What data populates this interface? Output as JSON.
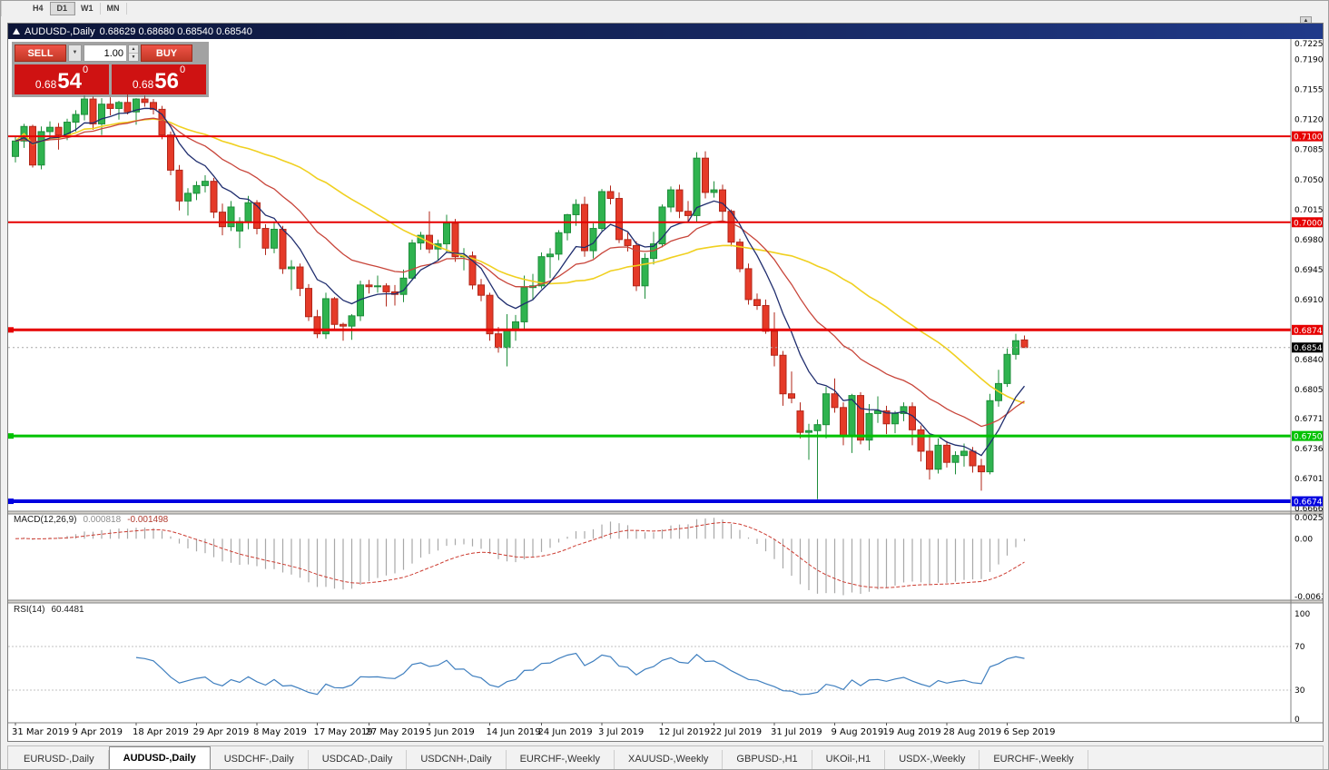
{
  "window": {
    "title_bar": {
      "symbol": "AUDUSD-,Daily",
      "ohlc": "0.68629 0.68680 0.68540 0.68540"
    }
  },
  "toolbar": {
    "timeframes": [
      "H4",
      "D1",
      "W1",
      "MN"
    ],
    "active": "D1"
  },
  "icons": {
    "spinner_up": "▲",
    "spinner_down": "▼",
    "dropdown": "▼",
    "scroll_up": "▲"
  },
  "trade_panel": {
    "sell_label": "SELL",
    "buy_label": "BUY",
    "volume": "1.00",
    "sell_price": {
      "prefix": "0.68",
      "big": "54",
      "sup": "0"
    },
    "buy_price": {
      "prefix": "0.68",
      "big": "56",
      "sup": "0"
    }
  },
  "price_axis": {
    "labels": [
      "0.72250",
      "0.71900",
      "0.71550",
      "0.71200",
      "0.70850",
      "0.70500",
      "0.70150",
      "0.69800",
      "0.69450",
      "0.69100",
      "0.68750",
      "0.68400",
      "0.68050",
      "0.67710",
      "0.67360",
      "0.67010",
      "0.66660"
    ]
  },
  "hlines": [
    {
      "price": 0.71005,
      "label": "0.71005",
      "color": "#e60000",
      "width": 2,
      "anchor": false
    },
    {
      "price": 0.70002,
      "label": "0.70002",
      "color": "#e60000",
      "width": 2,
      "anchor": false
    },
    {
      "price": 0.68746,
      "label": "0.68746",
      "color": "#e60000",
      "width": 3,
      "anchor": true
    },
    {
      "price": 0.67508,
      "label": "0.67508",
      "color": "#00c200",
      "width": 3,
      "anchor": true
    },
    {
      "price": 0.66746,
      "label": "0.66746",
      "color": "#0000e0",
      "width": 4,
      "anchor": true
    }
  ],
  "current_price": {
    "value": 0.6854,
    "label": "0.68540"
  },
  "macd": {
    "name": "MACD(12,26,9)",
    "value1": "0.000818",
    "value2": "-0.001498",
    "fast": 12,
    "slow": 26,
    "signal": 9,
    "axis_labels": [
      "0.0025574",
      "0.00",
      "-0.0063326"
    ],
    "scale_max": 0.0025574,
    "scale_min": -0.0063326
  },
  "rsi": {
    "name": "RSI(14)",
    "value": "60.4481",
    "period": 14,
    "levels": [
      70,
      30
    ],
    "axis_labels": [
      "100",
      "70",
      "30",
      "0"
    ]
  },
  "tabs": {
    "items": [
      "EURUSD-,Daily",
      "AUDUSD-,Daily",
      "USDCHF-,Daily",
      "USDCAD-,Daily",
      "USDCNH-,Daily",
      "EURCHF-,Weekly",
      "XAUUSD-,Weekly",
      "GBPUSD-,H1",
      "UKOil-,H1",
      "USDX-,Weekly",
      "EURCHF-,Weekly"
    ],
    "active_index": 1
  },
  "colors": {
    "bull": "#2fb34f",
    "bear": "#e53a28",
    "bull_stroke": "#1d8d3a",
    "bear_stroke": "#b1271a",
    "axis_text": "#000000",
    "tag_text": "#ffffff",
    "macd_hist": "#a8a8a8",
    "macd_signal": "#cc3b30",
    "rsi_line": "#3f7fbf",
    "level_line": "#c0c0c0",
    "current_line": "#a8a8a8",
    "current_tag": "#000000",
    "panel_sep": "#d6d3ce",
    "frame_line": "#808080"
  },
  "chart_data": {
    "type": "candlestick",
    "symbol": "AUDUSD",
    "timeframe": "Daily",
    "ylim": [
      0.6663,
      0.7214
    ],
    "moving_averages": [
      {
        "name": "slow",
        "type": "sma",
        "period": 34,
        "color": "#f0d020",
        "width": 1.6
      },
      {
        "name": "medium",
        "type": "ema",
        "period": 20,
        "color": "#c8453a",
        "width": 1.3
      },
      {
        "name": "fast",
        "type": "ema",
        "period": 8,
        "color": "#1f2d6e",
        "width": 1.3
      }
    ],
    "date_labels": [
      {
        "text": "31 Mar 2019",
        "i": 0
      },
      {
        "text": "9 Apr 2019",
        "i": 7
      },
      {
        "text": "18 Apr 2019",
        "i": 14
      },
      {
        "text": "29 Apr 2019",
        "i": 21
      },
      {
        "text": "8 May 2019",
        "i": 28
      },
      {
        "text": "17 May 2019",
        "i": 35
      },
      {
        "text": "27 May 2019",
        "i": 41
      },
      {
        "text": "5 Jun 2019",
        "i": 48
      },
      {
        "text": "14 Jun 2019",
        "i": 55
      },
      {
        "text": "24 Jun 2019",
        "i": 61
      },
      {
        "text": "3 Jul 2019",
        "i": 68
      },
      {
        "text": "12 Jul 2019",
        "i": 75
      },
      {
        "text": "22 Jul 2019",
        "i": 81
      },
      {
        "text": "31 Jul 2019",
        "i": 88
      },
      {
        "text": "9 Aug 2019",
        "i": 95
      },
      {
        "text": "19 Aug 2019",
        "i": 101
      },
      {
        "text": "28 Aug 2019",
        "i": 108
      },
      {
        "text": "6 Sep 2019",
        "i": 115
      }
    ],
    "candles": [
      [
        0.7077,
        0.71,
        0.707,
        0.7095
      ],
      [
        0.7095,
        0.7115,
        0.7087,
        0.7112
      ],
      [
        0.7112,
        0.7114,
        0.7064,
        0.7067
      ],
      [
        0.7067,
        0.7112,
        0.7062,
        0.7106
      ],
      [
        0.7106,
        0.7118,
        0.7096,
        0.7111
      ],
      [
        0.7111,
        0.7116,
        0.7085,
        0.7102
      ],
      [
        0.7102,
        0.7121,
        0.7096,
        0.7117
      ],
      [
        0.7117,
        0.7131,
        0.7106,
        0.7126
      ],
      [
        0.7126,
        0.7148,
        0.7119,
        0.7144
      ],
      [
        0.7144,
        0.7147,
        0.7108,
        0.7115
      ],
      [
        0.7115,
        0.7145,
        0.7102,
        0.7138
      ],
      [
        0.7138,
        0.7146,
        0.7125,
        0.7133
      ],
      [
        0.7133,
        0.7142,
        0.712,
        0.714
      ],
      [
        0.714,
        0.715,
        0.7126,
        0.7129
      ],
      [
        0.7129,
        0.7145,
        0.7114,
        0.7144
      ],
      [
        0.7144,
        0.7148,
        0.7135,
        0.714
      ],
      [
        0.714,
        0.7144,
        0.7126,
        0.7132
      ],
      [
        0.7132,
        0.7136,
        0.7097,
        0.7102
      ],
      [
        0.7102,
        0.7106,
        0.7055,
        0.7061
      ],
      [
        0.7061,
        0.7067,
        0.7014,
        0.7025
      ],
      [
        0.7025,
        0.704,
        0.7008,
        0.7034
      ],
      [
        0.7034,
        0.7048,
        0.7026,
        0.7043
      ],
      [
        0.7043,
        0.7055,
        0.7035,
        0.7048
      ],
      [
        0.7048,
        0.7052,
        0.7005,
        0.7012
      ],
      [
        0.7012,
        0.7022,
        0.6985,
        0.6995
      ],
      [
        0.6995,
        0.7025,
        0.699,
        0.7018
      ],
      [
        0.699,
        0.7006,
        0.697,
        0.7001
      ],
      [
        0.7001,
        0.7031,
        0.6992,
        0.7023
      ],
      [
        0.7023,
        0.7026,
        0.6986,
        0.6993
      ],
      [
        0.6993,
        0.6998,
        0.6962,
        0.697
      ],
      [
        0.697,
        0.7,
        0.6964,
        0.6992
      ],
      [
        0.6992,
        0.6996,
        0.694,
        0.6946
      ],
      [
        0.6946,
        0.6956,
        0.6921,
        0.6948
      ],
      [
        0.6948,
        0.6952,
        0.6914,
        0.6923
      ],
      [
        0.6923,
        0.6928,
        0.6885,
        0.689
      ],
      [
        0.689,
        0.6898,
        0.6865,
        0.687
      ],
      [
        0.687,
        0.6918,
        0.6864,
        0.6911
      ],
      [
        0.6911,
        0.6913,
        0.6875,
        0.6881
      ],
      [
        0.6881,
        0.6883,
        0.6862,
        0.6879
      ],
      [
        0.6879,
        0.6893,
        0.6863,
        0.6891
      ],
      [
        0.6891,
        0.6932,
        0.6885,
        0.6927
      ],
      [
        0.6927,
        0.6933,
        0.6917,
        0.6925
      ],
      [
        0.6925,
        0.6938,
        0.6918,
        0.6926
      ],
      [
        0.6926,
        0.6929,
        0.6902,
        0.6919
      ],
      [
        0.6919,
        0.6927,
        0.6903,
        0.6916
      ],
      [
        0.6916,
        0.6945,
        0.6907,
        0.6935
      ],
      [
        0.6935,
        0.698,
        0.6932,
        0.6976
      ],
      [
        0.6976,
        0.6989,
        0.6968,
        0.6985
      ],
      [
        0.6985,
        0.7013,
        0.6964,
        0.6969
      ],
      [
        0.6969,
        0.698,
        0.6955,
        0.6975
      ],
      [
        0.6975,
        0.7009,
        0.6965,
        0.6999
      ],
      [
        0.6999,
        0.7004,
        0.6954,
        0.696
      ],
      [
        0.696,
        0.697,
        0.6944,
        0.6961
      ],
      [
        0.6961,
        0.6966,
        0.6922,
        0.6927
      ],
      [
        0.6927,
        0.6934,
        0.6908,
        0.6915
      ],
      [
        0.6915,
        0.6918,
        0.6862,
        0.687
      ],
      [
        0.687,
        0.6878,
        0.6848,
        0.6854
      ],
      [
        0.6854,
        0.6893,
        0.6832,
        0.6875
      ],
      [
        0.6875,
        0.6892,
        0.6862,
        0.6884
      ],
      [
        0.6884,
        0.6938,
        0.6875,
        0.6924
      ],
      [
        0.6924,
        0.694,
        0.691,
        0.6926
      ],
      [
        0.6926,
        0.6965,
        0.6923,
        0.696
      ],
      [
        0.696,
        0.697,
        0.6935,
        0.6963
      ],
      [
        0.6963,
        0.6991,
        0.6956,
        0.6988
      ],
      [
        0.6988,
        0.701,
        0.6979,
        0.7009
      ],
      [
        0.7009,
        0.7027,
        0.6996,
        0.7021
      ],
      [
        0.7021,
        0.703,
        0.696,
        0.6967
      ],
      [
        0.6967,
        0.6999,
        0.6958,
        0.6993
      ],
      [
        0.6993,
        0.7039,
        0.699,
        0.7036
      ],
      [
        0.7036,
        0.7043,
        0.7021,
        0.7028
      ],
      [
        0.7028,
        0.7035,
        0.6976,
        0.698
      ],
      [
        0.698,
        0.6988,
        0.6966,
        0.6973
      ],
      [
        0.6973,
        0.6978,
        0.692,
        0.6926
      ],
      [
        0.6926,
        0.6964,
        0.6911,
        0.6958
      ],
      [
        0.6958,
        0.6989,
        0.6951,
        0.6975
      ],
      [
        0.6975,
        0.7021,
        0.6971,
        0.7018
      ],
      [
        0.7018,
        0.7042,
        0.7012,
        0.7038
      ],
      [
        0.7038,
        0.7044,
        0.7005,
        0.7013
      ],
      [
        0.7013,
        0.7025,
        0.7,
        0.7008
      ],
      [
        0.7008,
        0.7082,
        0.7001,
        0.7075
      ],
      [
        0.7075,
        0.7083,
        0.7028,
        0.7035
      ],
      [
        0.7035,
        0.7048,
        0.7029,
        0.7038
      ],
      [
        0.7038,
        0.7044,
        0.7,
        0.7013
      ],
      [
        0.7013,
        0.7015,
        0.6972,
        0.6977
      ],
      [
        0.6977,
        0.6981,
        0.6942,
        0.6946
      ],
      [
        0.6946,
        0.6952,
        0.6904,
        0.691
      ],
      [
        0.691,
        0.6917,
        0.6898,
        0.6903
      ],
      [
        0.6903,
        0.691,
        0.687,
        0.6873
      ],
      [
        0.6873,
        0.6895,
        0.6832,
        0.6845
      ],
      [
        0.6845,
        0.685,
        0.6786,
        0.68
      ],
      [
        0.68,
        0.6826,
        0.6789,
        0.6795
      ],
      [
        0.678,
        0.679,
        0.6748,
        0.6755
      ],
      [
        0.6755,
        0.6765,
        0.6723,
        0.6757
      ],
      [
        0.6757,
        0.677,
        0.6677,
        0.6764
      ],
      [
        0.6764,
        0.6808,
        0.6748,
        0.68
      ],
      [
        0.68,
        0.6818,
        0.6778,
        0.6784
      ],
      [
        0.6784,
        0.679,
        0.674,
        0.6751
      ],
      [
        0.6751,
        0.68,
        0.6731,
        0.6798
      ],
      [
        0.6798,
        0.6802,
        0.6741,
        0.6746
      ],
      [
        0.6746,
        0.6788,
        0.6734,
        0.6777
      ],
      [
        0.6777,
        0.6797,
        0.6766,
        0.678
      ],
      [
        0.678,
        0.6786,
        0.6753,
        0.6765
      ],
      [
        0.6765,
        0.678,
        0.6754,
        0.6777
      ],
      [
        0.6777,
        0.679,
        0.6768,
        0.6785
      ],
      [
        0.6785,
        0.679,
        0.674,
        0.6758
      ],
      [
        0.6758,
        0.6763,
        0.6721,
        0.6733
      ],
      [
        0.6733,
        0.675,
        0.67,
        0.6712
      ],
      [
        0.6712,
        0.6748,
        0.6707,
        0.674
      ],
      [
        0.674,
        0.6745,
        0.6714,
        0.672
      ],
      [
        0.672,
        0.6733,
        0.6706,
        0.6728
      ],
      [
        0.6728,
        0.6742,
        0.6715,
        0.6733
      ],
      [
        0.6733,
        0.6738,
        0.6708,
        0.6716
      ],
      [
        0.6716,
        0.6724,
        0.6687,
        0.6709
      ],
      [
        0.6709,
        0.68,
        0.6706,
        0.6792
      ],
      [
        0.6792,
        0.6828,
        0.6785,
        0.6812
      ],
      [
        0.6812,
        0.6853,
        0.6808,
        0.6846
      ],
      [
        0.6846,
        0.687,
        0.684,
        0.6862
      ],
      [
        0.68629,
        0.6868,
        0.6854,
        0.6854
      ]
    ]
  }
}
